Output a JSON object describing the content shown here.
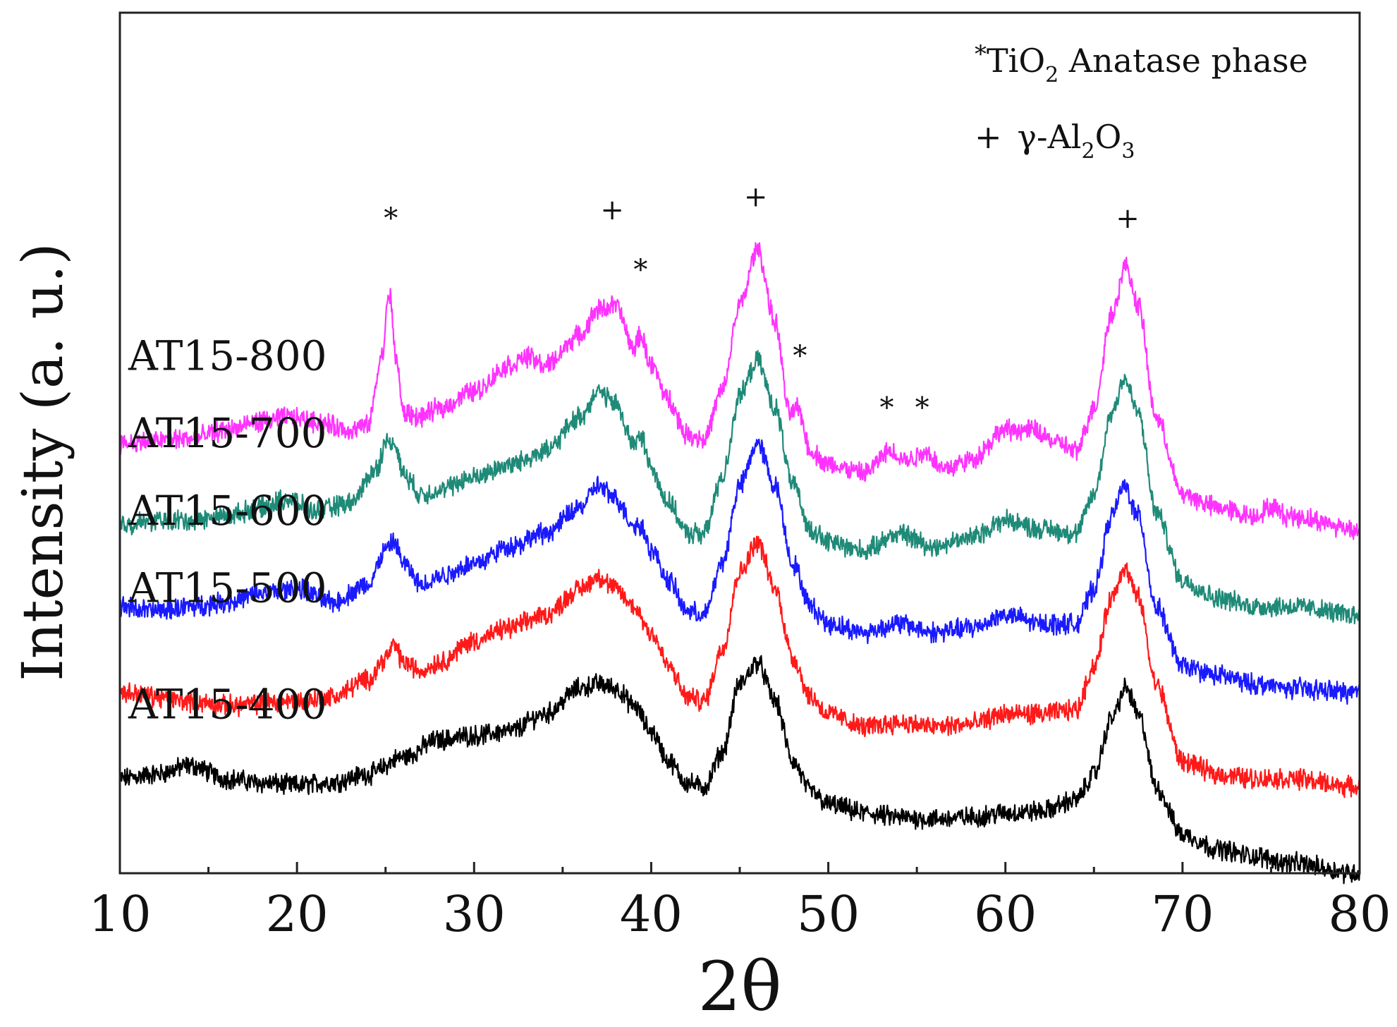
{
  "chart_data": {
    "type": "line",
    "title": "",
    "xlabel": "2θ",
    "ylabel": "Intensity (a. u.)",
    "xlim": [
      10,
      80
    ],
    "ylim": [
      0,
      100
    ],
    "xticks": [
      "10",
      "20",
      "30",
      "40",
      "50",
      "60",
      "70",
      "80"
    ],
    "yticks": [],
    "grid": false,
    "legend": {
      "position": "top-right",
      "entries": [
        {
          "symbol": "*",
          "text": "TiO",
          "sub": "2",
          "after": " Anatase phase"
        },
        {
          "symbol": "+",
          "text": "γ-Al",
          "sub": "2",
          "after": "O",
          "sub2": "3"
        }
      ]
    },
    "series": [
      {
        "name": "AT15-400",
        "color": "#000000",
        "baseline": 11,
        "points": [
          [
            10,
            11
          ],
          [
            12,
            11.5
          ],
          [
            14,
            12.5
          ],
          [
            16,
            11
          ],
          [
            18,
            10.5
          ],
          [
            20,
            10.2
          ],
          [
            22,
            10.6
          ],
          [
            24,
            11.5
          ],
          [
            26,
            13.5
          ],
          [
            28,
            15.5
          ],
          [
            30,
            16
          ],
          [
            32,
            16.5
          ],
          [
            34,
            18.5
          ],
          [
            36,
            21.5
          ],
          [
            37,
            22
          ],
          [
            38,
            21.5
          ],
          [
            39,
            19.5
          ],
          [
            40,
            16.5
          ],
          [
            41,
            13
          ],
          [
            42,
            10.5
          ],
          [
            43,
            10
          ],
          [
            44,
            14
          ],
          [
            45,
            22
          ],
          [
            46,
            24.5
          ],
          [
            47,
            20
          ],
          [
            48,
            13
          ],
          [
            49,
            9.5
          ],
          [
            50,
            8
          ],
          [
            52,
            7
          ],
          [
            54,
            6.5
          ],
          [
            56,
            6.3
          ],
          [
            58,
            6.5
          ],
          [
            60,
            7
          ],
          [
            62,
            7.2
          ],
          [
            64,
            8.5
          ],
          [
            65,
            11.5
          ],
          [
            66,
            18
          ],
          [
            66.8,
            21.5
          ],
          [
            67.6,
            18
          ],
          [
            68.5,
            10
          ],
          [
            70,
            4.5
          ],
          [
            72,
            2.8
          ],
          [
            74,
            2
          ],
          [
            76,
            1.2
          ],
          [
            80,
            0
          ]
        ]
      },
      {
        "name": "AT15-500",
        "color": "#ff1a1a",
        "baseline": 22,
        "points": [
          [
            10,
            21
          ],
          [
            14,
            20
          ],
          [
            16,
            19.5
          ],
          [
            20,
            20
          ],
          [
            22,
            20.5
          ],
          [
            24,
            22.5
          ],
          [
            25,
            25
          ],
          [
            25.5,
            26.5
          ],
          [
            26,
            24.5
          ],
          [
            27,
            23.5
          ],
          [
            28,
            24.5
          ],
          [
            30,
            27
          ],
          [
            32,
            28.5
          ],
          [
            34,
            30
          ],
          [
            36,
            33
          ],
          [
            37,
            34.5
          ],
          [
            38,
            33
          ],
          [
            39,
            31
          ],
          [
            40,
            28
          ],
          [
            41,
            24
          ],
          [
            42,
            20.5
          ],
          [
            43,
            20
          ],
          [
            44,
            26
          ],
          [
            45,
            35
          ],
          [
            46,
            38.5
          ],
          [
            47,
            33
          ],
          [
            48,
            25
          ],
          [
            49,
            20.5
          ],
          [
            50,
            18.5
          ],
          [
            52,
            17
          ],
          [
            54,
            17.5
          ],
          [
            56,
            17
          ],
          [
            58,
            17.3
          ],
          [
            60,
            18.5
          ],
          [
            62,
            18.5
          ],
          [
            64,
            19
          ],
          [
            65,
            24
          ],
          [
            66,
            32
          ],
          [
            66.7,
            35.5
          ],
          [
            67.5,
            32
          ],
          [
            68.5,
            22
          ],
          [
            70,
            13
          ],
          [
            72,
            11.5
          ],
          [
            74,
            11
          ],
          [
            76,
            11
          ],
          [
            80,
            10
          ]
        ]
      },
      {
        "name": "AT15-600",
        "color": "#1a1aff",
        "baseline": 33,
        "points": [
          [
            10,
            31
          ],
          [
            12,
            30.5
          ],
          [
            14,
            31
          ],
          [
            16,
            31.5
          ],
          [
            18,
            32.5
          ],
          [
            20,
            33
          ],
          [
            22,
            31.5
          ],
          [
            24,
            33.5
          ],
          [
            25,
            37.5
          ],
          [
            25.5,
            38.5
          ],
          [
            26,
            36
          ],
          [
            27,
            33.5
          ],
          [
            28,
            34.5
          ],
          [
            30,
            36
          ],
          [
            32,
            38
          ],
          [
            34,
            39.5
          ],
          [
            36,
            42.5
          ],
          [
            37,
            45
          ],
          [
            38,
            43.5
          ],
          [
            39,
            40.5
          ],
          [
            39.5,
            40.2
          ],
          [
            40,
            37.5
          ],
          [
            41,
            34
          ],
          [
            42,
            30.5
          ],
          [
            43,
            30
          ],
          [
            44,
            36
          ],
          [
            45,
            45
          ],
          [
            46,
            50
          ],
          [
            47,
            45
          ],
          [
            48,
            36
          ],
          [
            49,
            31
          ],
          [
            50,
            29
          ],
          [
            52,
            28
          ],
          [
            54,
            29
          ],
          [
            56,
            28
          ],
          [
            58,
            28.5
          ],
          [
            60,
            30
          ],
          [
            62,
            29
          ],
          [
            64,
            29
          ],
          [
            65,
            33
          ],
          [
            66,
            41.5
          ],
          [
            66.7,
            45
          ],
          [
            67.5,
            41.5
          ],
          [
            68.5,
            31
          ],
          [
            70,
            24
          ],
          [
            72,
            23
          ],
          [
            74,
            22
          ],
          [
            76,
            21.5
          ],
          [
            80,
            21
          ]
        ]
      },
      {
        "name": "AT15-700",
        "color": "#1f8a78",
        "baseline": 43,
        "points": [
          [
            10,
            40.5
          ],
          [
            12,
            41
          ],
          [
            14,
            41
          ],
          [
            16,
            41.5
          ],
          [
            18,
            42.5
          ],
          [
            19.5,
            43.5
          ],
          [
            21,
            42
          ],
          [
            23,
            43
          ],
          [
            24.5,
            47
          ],
          [
            25,
            50
          ],
          [
            25.5,
            50
          ],
          [
            26,
            46.5
          ],
          [
            27,
            44
          ],
          [
            28,
            44.5
          ],
          [
            30,
            46
          ],
          [
            32,
            47.5
          ],
          [
            34,
            49
          ],
          [
            36,
            53
          ],
          [
            37,
            56
          ],
          [
            38,
            54.5
          ],
          [
            39,
            50
          ],
          [
            39.5,
            50.5
          ],
          [
            40,
            47
          ],
          [
            41,
            43
          ],
          [
            42,
            39.5
          ],
          [
            43,
            39.5
          ],
          [
            44,
            46
          ],
          [
            45,
            55.5
          ],
          [
            46,
            59.5
          ],
          [
            47,
            54
          ],
          [
            48,
            45
          ],
          [
            49,
            40
          ],
          [
            50,
            38.5
          ],
          [
            52,
            37.5
          ],
          [
            54,
            39.5
          ],
          [
            56,
            38
          ],
          [
            58,
            39
          ],
          [
            60,
            41
          ],
          [
            62,
            40
          ],
          [
            64,
            39.5
          ],
          [
            65,
            44
          ],
          [
            66,
            53.5
          ],
          [
            66.7,
            57.5
          ],
          [
            67.5,
            53.5
          ],
          [
            68.5,
            42
          ],
          [
            70,
            34
          ],
          [
            72,
            32
          ],
          [
            74,
            31
          ],
          [
            76,
            31
          ],
          [
            80,
            30
          ]
        ]
      },
      {
        "name": "AT15-800",
        "color": "#ff33ff",
        "baseline": 50,
        "points": [
          [
            10,
            50
          ],
          [
            14,
            50.5
          ],
          [
            16,
            51.5
          ],
          [
            18,
            52.5
          ],
          [
            19.5,
            53
          ],
          [
            21,
            52.5
          ],
          [
            23,
            51.5
          ],
          [
            24,
            52
          ],
          [
            24.8,
            60
          ],
          [
            25.2,
            67.5
          ],
          [
            25.6,
            60
          ],
          [
            26,
            53.5
          ],
          [
            27,
            53
          ],
          [
            28,
            54
          ],
          [
            30,
            56
          ],
          [
            32,
            59
          ],
          [
            33,
            60
          ],
          [
            34,
            59
          ],
          [
            36,
            62.5
          ],
          [
            37,
            65.5
          ],
          [
            38,
            66
          ],
          [
            39,
            61
          ],
          [
            39.4,
            62.5
          ],
          [
            40,
            59
          ],
          [
            41,
            55
          ],
          [
            42,
            51
          ],
          [
            43,
            50.5
          ],
          [
            44,
            56
          ],
          [
            45,
            66
          ],
          [
            46,
            72.5
          ],
          [
            47,
            64
          ],
          [
            47.8,
            53.5
          ],
          [
            48.3,
            54
          ],
          [
            49,
            49
          ],
          [
            50,
            47.5
          ],
          [
            52,
            46.5
          ],
          [
            53.5,
            49
          ],
          [
            54.5,
            48
          ],
          [
            55.5,
            49
          ],
          [
            56.5,
            47
          ],
          [
            58,
            48
          ],
          [
            60,
            51.5
          ],
          [
            61.5,
            51.5
          ],
          [
            63,
            50
          ],
          [
            64,
            49
          ],
          [
            65,
            54
          ],
          [
            66,
            65
          ],
          [
            66.8,
            70.5
          ],
          [
            67.5,
            66
          ],
          [
            68.5,
            53
          ],
          [
            70,
            44
          ],
          [
            72,
            42.5
          ],
          [
            74,
            41.5
          ],
          [
            75,
            42.5
          ],
          [
            76,
            41.5
          ],
          [
            80,
            40
          ]
        ]
      }
    ],
    "annotations": [
      {
        "symbol": "*",
        "x": 25.3,
        "series": "AT15-800",
        "label_y": 75
      },
      {
        "symbol": "+",
        "x": 37.8,
        "series": "AT15-800",
        "label_y": 76
      },
      {
        "symbol": "*",
        "x": 39.4,
        "series": "AT15-800",
        "label_y": 69
      },
      {
        "symbol": "+",
        "x": 45.9,
        "series": "AT15-800",
        "label_y": 77.5
      },
      {
        "symbol": "*",
        "x": 48.4,
        "series": "AT15-800",
        "label_y": 59
      },
      {
        "symbol": "*",
        "x": 53.3,
        "series": "AT15-800",
        "label_y": 53
      },
      {
        "symbol": "*",
        "x": 55.3,
        "series": "AT15-800",
        "label_y": 53
      },
      {
        "symbol": "+",
        "x": 66.9,
        "series": "AT15-800",
        "label_y": 75
      }
    ]
  }
}
